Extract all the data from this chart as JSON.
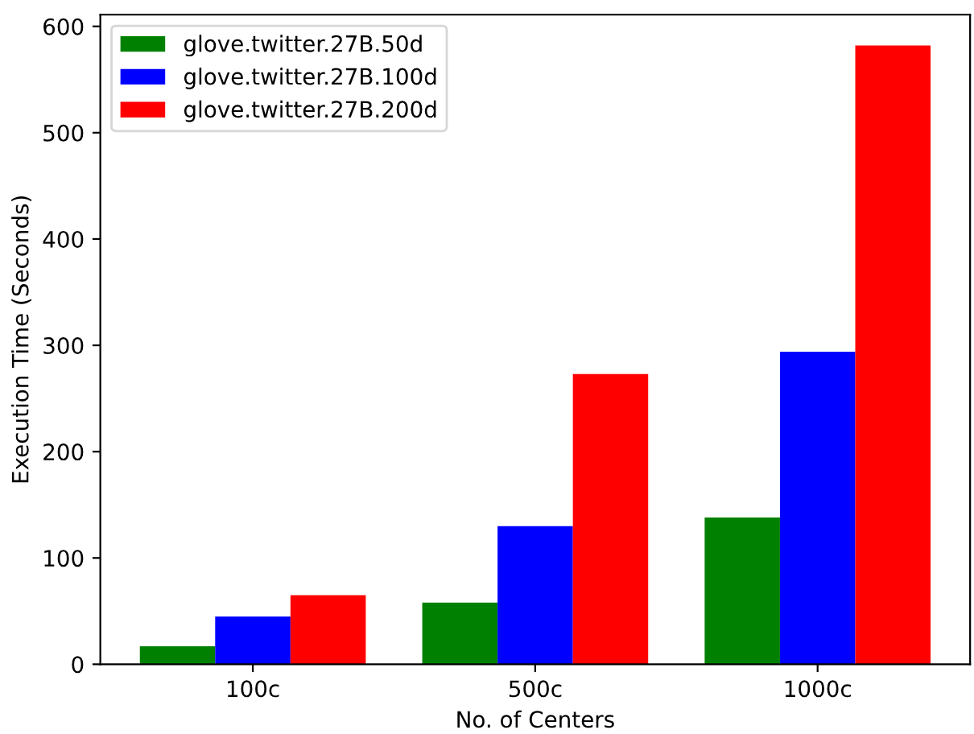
{
  "chart_data": {
    "type": "bar",
    "xlabel": "No. of Centers",
    "ylabel": "Execution Time (Seconds)",
    "categories": [
      "100c",
      "500c",
      "1000c"
    ],
    "series": [
      {
        "name": "glove.twitter.27B.50d",
        "color": "#008000",
        "values": [
          17,
          58,
          138
        ]
      },
      {
        "name": "glove.twitter.27B.100d",
        "color": "#0000ff",
        "values": [
          45,
          130,
          294
        ]
      },
      {
        "name": "glove.twitter.27B.200d",
        "color": "#ff0000",
        "values": [
          65,
          273,
          582
        ]
      }
    ],
    "ylim": [
      0,
      611
    ],
    "yticks": [
      0,
      100,
      200,
      300,
      400,
      500,
      600
    ],
    "legend": "top left",
    "grid": false
  }
}
